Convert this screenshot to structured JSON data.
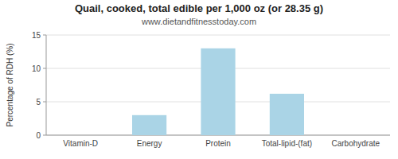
{
  "chart_data": {
    "type": "bar",
    "title": "Quail, cooked, total edible per 1,000 oz (or 28.35 g)",
    "subtitle": "www.dietandfitnesstoday.com",
    "categories": [
      "Vitamin-D",
      "Energy",
      "Protein",
      "Total-lipid-(fat)",
      "Carbohydrate"
    ],
    "values": [
      0,
      3.0,
      13.0,
      6.2,
      0
    ],
    "color": "#aad4e6",
    "ylabel": "Percentage of RDH (%)",
    "ylim": [
      0,
      15
    ],
    "yticks": [
      0,
      5,
      10,
      15
    ],
    "grid": true
  }
}
